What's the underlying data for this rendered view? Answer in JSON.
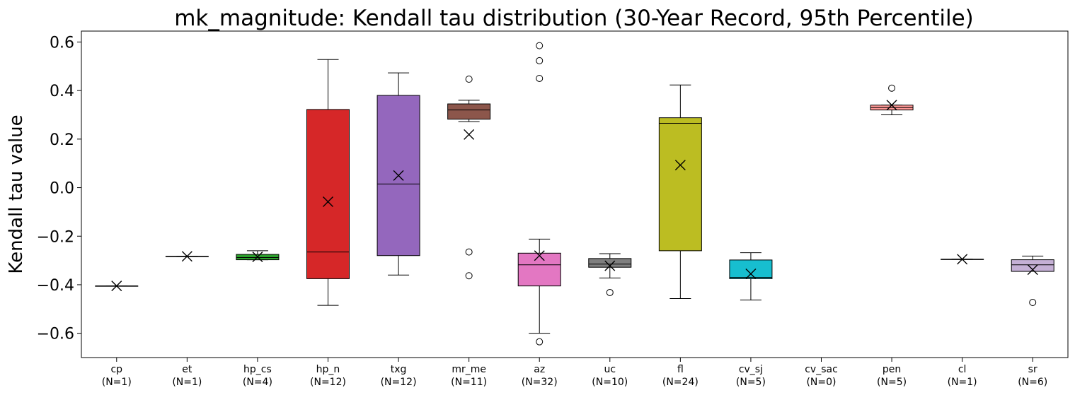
{
  "chart_data": {
    "type": "box",
    "title": "mk_magnitude: Kendall tau distribution (30-Year Record, 95th Percentile)",
    "xlabel": "",
    "ylabel": "Kendall tau value",
    "ylim": [
      -0.7,
      0.645
    ],
    "yticks": [
      {
        "value": -0.6,
        "label": "−0.6"
      },
      {
        "value": -0.4,
        "label": "−0.4"
      },
      {
        "value": -0.2,
        "label": "−0.2"
      },
      {
        "value": 0.0,
        "label": "0.0"
      },
      {
        "value": 0.2,
        "label": "0.2"
      },
      {
        "value": 0.4,
        "label": "0.4"
      },
      {
        "value": 0.6,
        "label": "0.6"
      }
    ],
    "grid": false,
    "mean_marker": "x",
    "groups": [
      {
        "name": "cp",
        "count_label": "(N=1)",
        "color": "#1f77b4",
        "q1": -0.405,
        "median": -0.405,
        "q3": -0.405,
        "whisker_low": -0.405,
        "whisker_high": -0.405,
        "mean": -0.405,
        "outliers": []
      },
      {
        "name": "et",
        "count_label": "(N=1)",
        "color": "#ff7f0e",
        "q1": -0.283,
        "median": -0.283,
        "q3": -0.283,
        "whisker_low": -0.283,
        "whisker_high": -0.283,
        "mean": -0.283,
        "outliers": []
      },
      {
        "name": "hp_cs",
        "count_label": "(N=4)",
        "color": "#2ca02c",
        "q1": -0.297,
        "median": -0.288,
        "q3": -0.275,
        "whisker_low": -0.297,
        "whisker_high": -0.26,
        "mean": -0.285,
        "outliers": []
      },
      {
        "name": "hp_n",
        "count_label": "(N=12)",
        "color": "#d62728",
        "q1": -0.375,
        "median": -0.265,
        "q3": 0.322,
        "whisker_low": -0.485,
        "whisker_high": 0.528,
        "mean": -0.058,
        "outliers": []
      },
      {
        "name": "txg",
        "count_label": "(N=12)",
        "color": "#9467bd",
        "q1": -0.28,
        "median": 0.015,
        "q3": 0.38,
        "whisker_low": -0.36,
        "whisker_high": 0.473,
        "mean": 0.05,
        "outliers": []
      },
      {
        "name": "mr_me",
        "count_label": "(N=11)",
        "color": "#8c564b",
        "q1": 0.282,
        "median": 0.32,
        "q3": 0.345,
        "whisker_low": 0.272,
        "whisker_high": 0.36,
        "mean": 0.219,
        "outliers": [
          0.447,
          -0.265,
          -0.363
        ]
      },
      {
        "name": "az",
        "count_label": "(N=32)",
        "color": "#e377c2",
        "q1": -0.405,
        "median": -0.318,
        "q3": -0.27,
        "whisker_low": -0.6,
        "whisker_high": -0.212,
        "mean": -0.28,
        "outliers": [
          0.585,
          0.523,
          0.45,
          -0.635
        ]
      },
      {
        "name": "uc",
        "count_label": "(N=10)",
        "color": "#7f7f7f",
        "q1": -0.328,
        "median": -0.315,
        "q3": -0.292,
        "whisker_low": -0.372,
        "whisker_high": -0.272,
        "mean": -0.322,
        "outliers": [
          -0.432
        ]
      },
      {
        "name": "fl",
        "count_label": "(N=24)",
        "color": "#bcbd22",
        "q1": -0.26,
        "median": 0.265,
        "q3": 0.288,
        "whisker_low": -0.457,
        "whisker_high": 0.423,
        "mean": 0.093,
        "outliers": []
      },
      {
        "name": "cv_sj",
        "count_label": "(N=5)",
        "color": "#17becf",
        "q1": -0.375,
        "median": -0.37,
        "q3": -0.298,
        "whisker_low": -0.463,
        "whisker_high": -0.268,
        "mean": -0.355,
        "outliers": []
      },
      {
        "name": "cv_sac",
        "count_label": "(N=0)",
        "color": "#aec7e8",
        "q1": null,
        "median": null,
        "q3": null,
        "whisker_low": null,
        "whisker_high": null,
        "mean": null,
        "outliers": []
      },
      {
        "name": "pen",
        "count_label": "(N=5)",
        "color": "#ff9896",
        "q1": 0.32,
        "median": 0.33,
        "q3": 0.34,
        "whisker_low": 0.3,
        "whisker_high": 0.34,
        "mean": 0.34,
        "outliers": [
          0.41
        ]
      },
      {
        "name": "cl",
        "count_label": "(N=1)",
        "color": "#c5b0d5",
        "q1": -0.295,
        "median": -0.295,
        "q3": -0.295,
        "whisker_low": -0.295,
        "whisker_high": -0.295,
        "mean": -0.295,
        "outliers": []
      },
      {
        "name": "sr",
        "count_label": "(N=6)",
        "color": "#c5b0d5",
        "q1": -0.345,
        "median": -0.318,
        "q3": -0.297,
        "whisker_low": -0.345,
        "whisker_high": -0.282,
        "mean": -0.338,
        "outliers": [
          -0.473
        ]
      }
    ]
  }
}
